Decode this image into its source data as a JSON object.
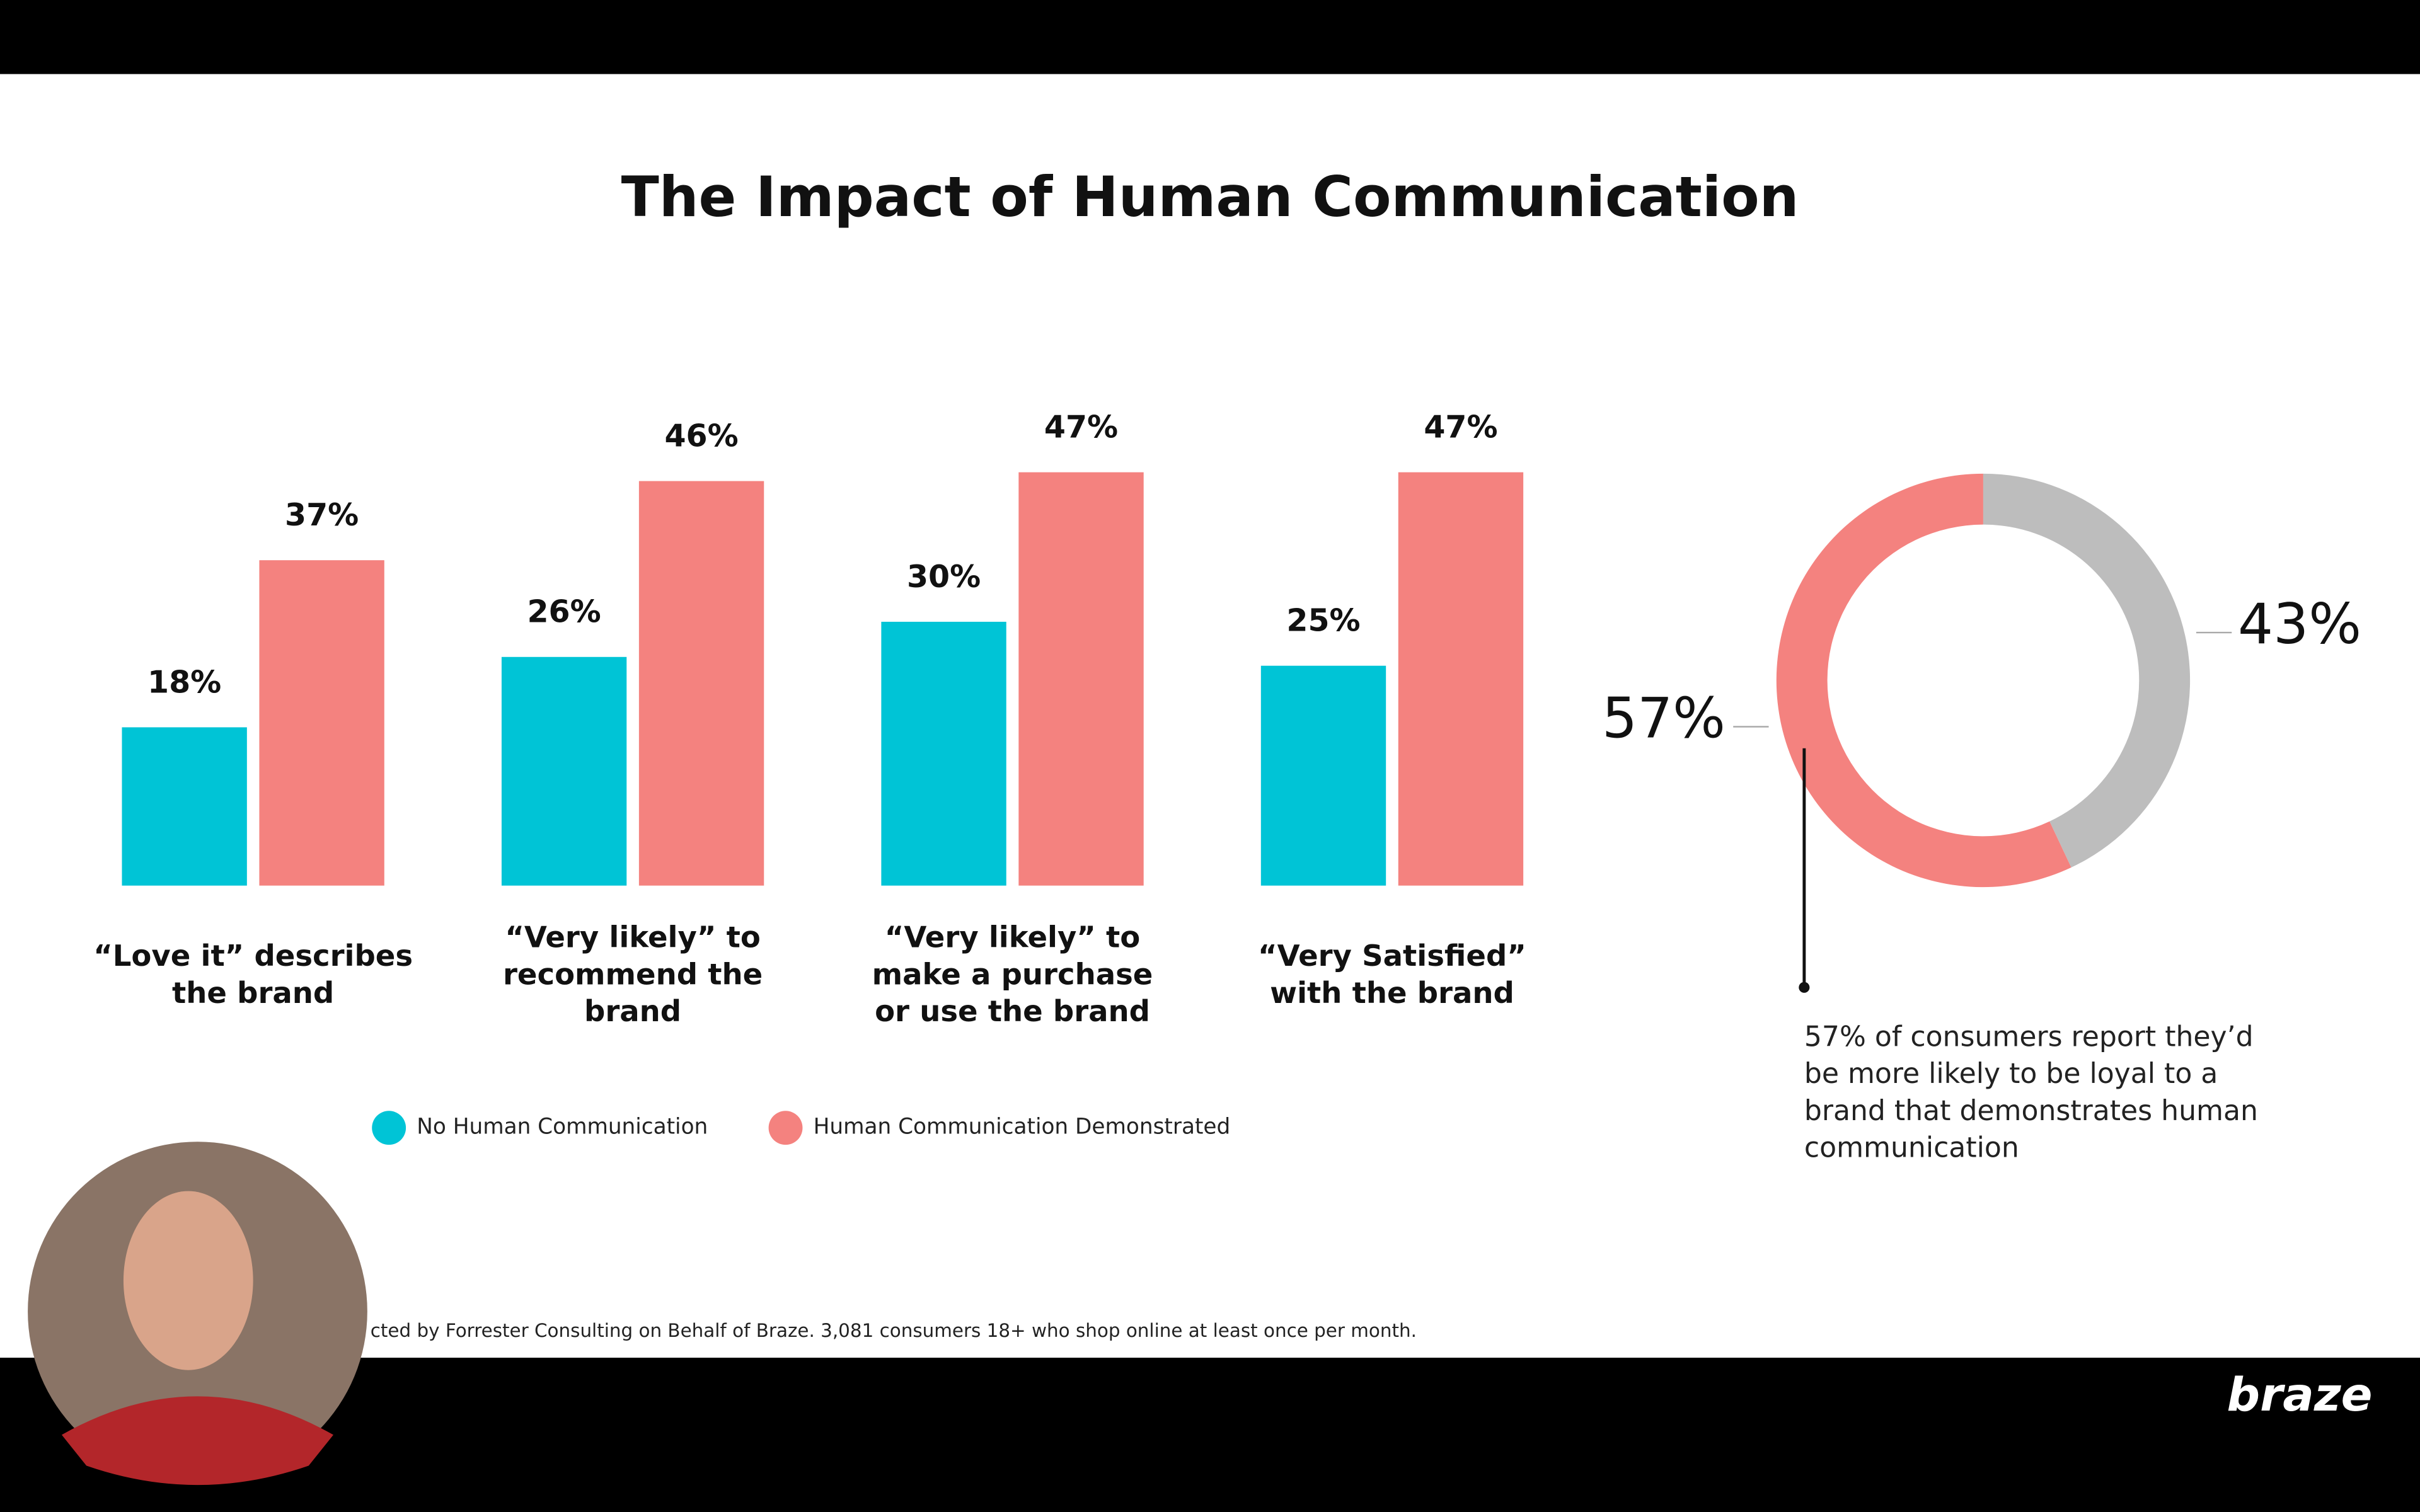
{
  "chart_data": [
    {
      "type": "bar",
      "title": "The Impact of Human Communication",
      "categories": [
        "“Love it” describes the brand",
        "“Very likely” to recommend the brand",
        "“Very likely” to make a purchase or use the brand",
        "“Very Satisfied” with the brand"
      ],
      "series": [
        {
          "name": "No Human Communication",
          "color": "#00c4d6",
          "values": [
            18,
            26,
            30,
            25
          ],
          "value_labels": [
            "18%",
            "26%",
            "30%",
            "25%"
          ]
        },
        {
          "name": "Human Communication Demonstrated",
          "color": "#f4827f",
          "values": [
            37,
            46,
            47,
            47
          ],
          "value_labels": [
            "37%",
            "46%",
            "47%",
            "47%"
          ]
        }
      ]
    },
    {
      "type": "pie",
      "values": [
        57,
        43
      ],
      "value_labels": [
        "57%",
        "43%"
      ],
      "colors": [
        "#f4827f",
        "#bdbdbd"
      ],
      "annotation": "57% of consumers report they’d be more likely to be loyal to a brand that demonstrates human communication"
    }
  ],
  "footnote": "cted by Forrester Consulting on Behalf of Braze. 3,081 consumers 18+ who shop online at least once per month.",
  "logo": "braze"
}
